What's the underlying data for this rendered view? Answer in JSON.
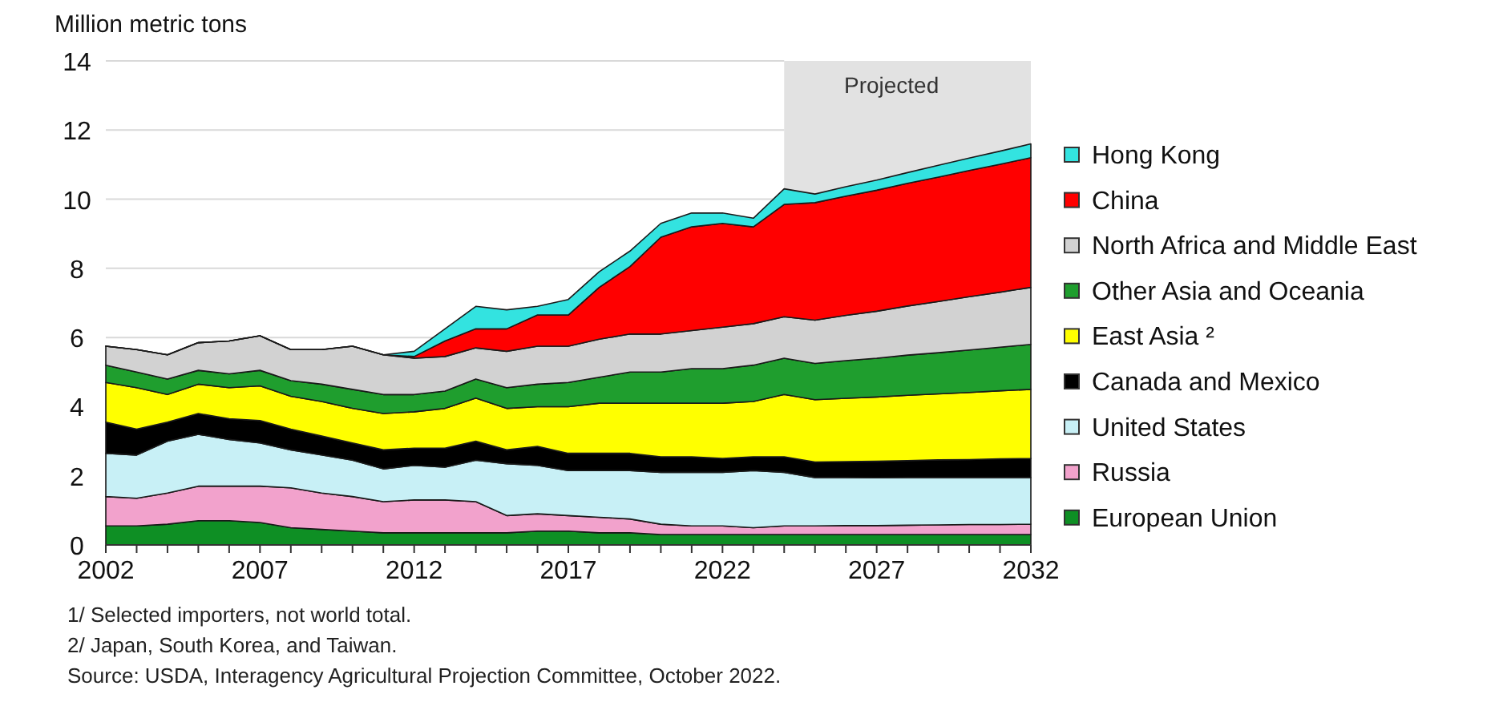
{
  "chart_data": {
    "type": "area",
    "stacked": true,
    "ylabel": "Million metric tons",
    "x": [
      2002,
      2003,
      2004,
      2005,
      2006,
      2007,
      2008,
      2009,
      2010,
      2011,
      2012,
      2013,
      2014,
      2015,
      2016,
      2017,
      2018,
      2019,
      2020,
      2021,
      2022,
      2023,
      2024,
      2025,
      2026,
      2027,
      2028,
      2029,
      2030,
      2031,
      2032
    ],
    "xlim": [
      2002,
      2032
    ],
    "xticks": [
      2002,
      {
        "value": 2003,
        "label": null
      },
      {
        "value": 2004,
        "label": null
      },
      {
        "value": 2005,
        "label": null
      },
      {
        "value": 2006,
        "label": null
      },
      2007,
      {
        "value": 2008,
        "label": null
      },
      {
        "value": 2009,
        "label": null
      },
      {
        "value": 2010,
        "label": null
      },
      {
        "value": 2011,
        "label": null
      },
      2012,
      {
        "value": 2013,
        "label": null
      },
      {
        "value": 2014,
        "label": null
      },
      {
        "value": 2015,
        "label": null
      },
      {
        "value": 2016,
        "label": null
      },
      2017,
      {
        "value": 2018,
        "label": null
      },
      {
        "value": 2019,
        "label": null
      },
      {
        "value": 2020,
        "label": null
      },
      {
        "value": 2021,
        "label": null
      },
      2022,
      {
        "value": 2023,
        "label": null
      },
      {
        "value": 2024,
        "label": null
      },
      {
        "value": 2025,
        "label": null
      },
      {
        "value": 2026,
        "label": null
      },
      2027,
      {
        "value": 2028,
        "label": null
      },
      {
        "value": 2029,
        "label": null
      },
      {
        "value": 2030,
        "label": null
      },
      {
        "value": 2031,
        "label": null
      },
      2032
    ],
    "ylim": [
      0,
      14
    ],
    "yticks": [
      0,
      2,
      4,
      6,
      8,
      10,
      12,
      14
    ],
    "grid": "y",
    "legend": "right",
    "series": [
      {
        "name": "European Union",
        "color": "#0e8f24",
        "values": [
          0.55,
          0.55,
          0.6,
          0.7,
          0.7,
          0.65,
          0.5,
          0.45,
          0.4,
          0.35,
          0.35,
          0.35,
          0.35,
          0.35,
          0.4,
          0.4,
          0.35,
          0.35,
          0.3,
          0.3,
          0.3,
          0.3,
          0.3,
          0.3,
          0.3,
          0.3,
          0.3,
          0.3,
          0.3,
          0.3,
          0.3
        ]
      },
      {
        "name": "Russia",
        "color": "#f2a2cc",
        "values": [
          0.85,
          0.8,
          0.9,
          1.0,
          1.0,
          1.05,
          1.15,
          1.05,
          1.0,
          0.9,
          0.95,
          0.95,
          0.9,
          0.5,
          0.5,
          0.45,
          0.45,
          0.4,
          0.3,
          0.25,
          0.25,
          0.2,
          0.25,
          0.25,
          0.26,
          0.26,
          0.27,
          0.28,
          0.29,
          0.29,
          0.3
        ]
      },
      {
        "name": "United States",
        "color": "#c8f0f6",
        "values": [
          1.25,
          1.25,
          1.5,
          1.5,
          1.35,
          1.25,
          1.1,
          1.1,
          1.05,
          0.95,
          1.0,
          0.95,
          1.2,
          1.5,
          1.4,
          1.3,
          1.35,
          1.4,
          1.5,
          1.55,
          1.55,
          1.65,
          1.55,
          1.4,
          1.39,
          1.38,
          1.38,
          1.37,
          1.36,
          1.36,
          1.35
        ]
      },
      {
        "name": "Canada and Mexico",
        "color": "#000000",
        "values": [
          0.9,
          0.75,
          0.55,
          0.6,
          0.6,
          0.65,
          0.6,
          0.55,
          0.5,
          0.55,
          0.5,
          0.55,
          0.55,
          0.4,
          0.55,
          0.5,
          0.5,
          0.5,
          0.45,
          0.45,
          0.4,
          0.4,
          0.45,
          0.45,
          0.46,
          0.48,
          0.49,
          0.51,
          0.52,
          0.54,
          0.55
        ]
      },
      {
        "name": "East Asia ²",
        "color": "#ffff00",
        "values": [
          1.15,
          1.2,
          0.8,
          0.85,
          0.9,
          1.0,
          0.95,
          1.0,
          1.0,
          1.05,
          1.05,
          1.15,
          1.25,
          1.2,
          1.15,
          1.35,
          1.45,
          1.45,
          1.55,
          1.55,
          1.6,
          1.6,
          1.8,
          1.8,
          1.83,
          1.86,
          1.89,
          1.91,
          1.94,
          1.97,
          2.0
        ]
      },
      {
        "name": "Other Asia and Oceania",
        "color": "#1f9e2e",
        "values": [
          0.5,
          0.45,
          0.45,
          0.4,
          0.4,
          0.45,
          0.45,
          0.5,
          0.55,
          0.55,
          0.5,
          0.5,
          0.55,
          0.6,
          0.65,
          0.7,
          0.75,
          0.9,
          0.9,
          1.0,
          1.0,
          1.05,
          1.05,
          1.05,
          1.09,
          1.12,
          1.16,
          1.19,
          1.23,
          1.26,
          1.3
        ]
      },
      {
        "name": "North Africa and Middle East",
        "color": "#d2d2d2",
        "values": [
          0.55,
          0.65,
          0.7,
          0.8,
          0.95,
          1.0,
          0.9,
          1.0,
          1.25,
          1.15,
          1.05,
          1.0,
          0.9,
          1.05,
          1.1,
          1.05,
          1.1,
          1.1,
          1.1,
          1.1,
          1.2,
          1.2,
          1.2,
          1.25,
          1.31,
          1.36,
          1.42,
          1.48,
          1.54,
          1.59,
          1.65
        ]
      },
      {
        "name": "China",
        "color": "#ff0000",
        "values": [
          0,
          0,
          0,
          0,
          0,
          0,
          0,
          0,
          0,
          0,
          0.05,
          0.45,
          0.55,
          0.65,
          0.9,
          0.9,
          1.5,
          1.95,
          2.8,
          3.0,
          3.0,
          2.8,
          3.25,
          3.4,
          3.45,
          3.5,
          3.55,
          3.6,
          3.65,
          3.7,
          3.75
        ]
      },
      {
        "name": "Hong Kong",
        "color": "#33e3e0",
        "values": [
          0,
          0,
          0,
          0,
          0,
          0,
          0,
          0,
          0,
          0,
          0.15,
          0.35,
          0.65,
          0.55,
          0.25,
          0.45,
          0.45,
          0.45,
          0.4,
          0.4,
          0.3,
          0.25,
          0.45,
          0.25,
          0.27,
          0.29,
          0.31,
          0.34,
          0.36,
          0.38,
          0.4
        ]
      }
    ],
    "bands": [
      {
        "axis": "x",
        "from": 2024,
        "to": 2032,
        "label": "Projected",
        "color": "#e2e2e2"
      }
    ],
    "annotations": [
      "1/ Selected importers, not world total.",
      "2/ Japan, South Korea, and Taiwan.",
      "Source: USDA, Interagency Agricultural Projection Committee, October 2022."
    ]
  }
}
